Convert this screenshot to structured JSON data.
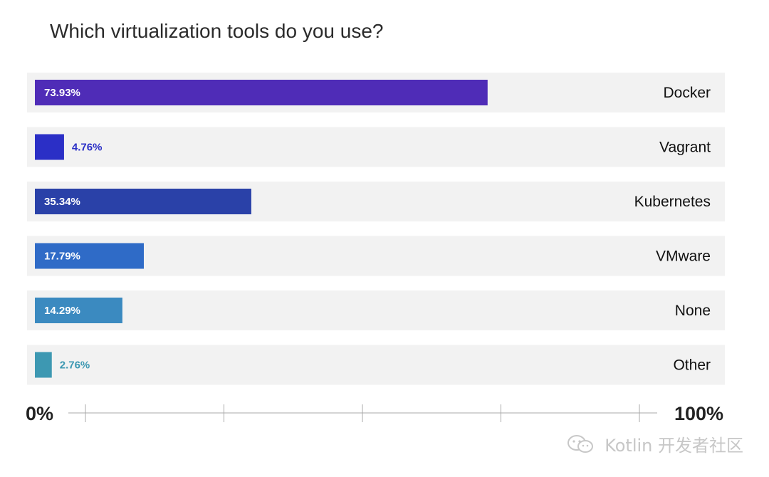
{
  "chart_data": {
    "type": "bar",
    "orientation": "horizontal",
    "title": "Which virtualization tools do you use?",
    "categories": [
      "Docker",
      "Vagrant",
      "Kubernetes",
      "VMware",
      "None",
      "Other"
    ],
    "values": [
      73.93,
      4.76,
      35.34,
      17.79,
      14.29,
      2.76
    ],
    "value_labels": [
      "73.93%",
      "4.76%",
      "35.34%",
      "17.79%",
      "14.29%",
      "2.76%"
    ],
    "colors": [
      "#4f2cb7",
      "#2b2fc6",
      "#2a41a8",
      "#2f6bc7",
      "#3b8ac0",
      "#3d98b2"
    ],
    "xlim": [
      0,
      100
    ],
    "axis_min_label": "0%",
    "axis_max_label": "100%",
    "grid": false
  },
  "watermark": "Kotlin 开发者社区"
}
